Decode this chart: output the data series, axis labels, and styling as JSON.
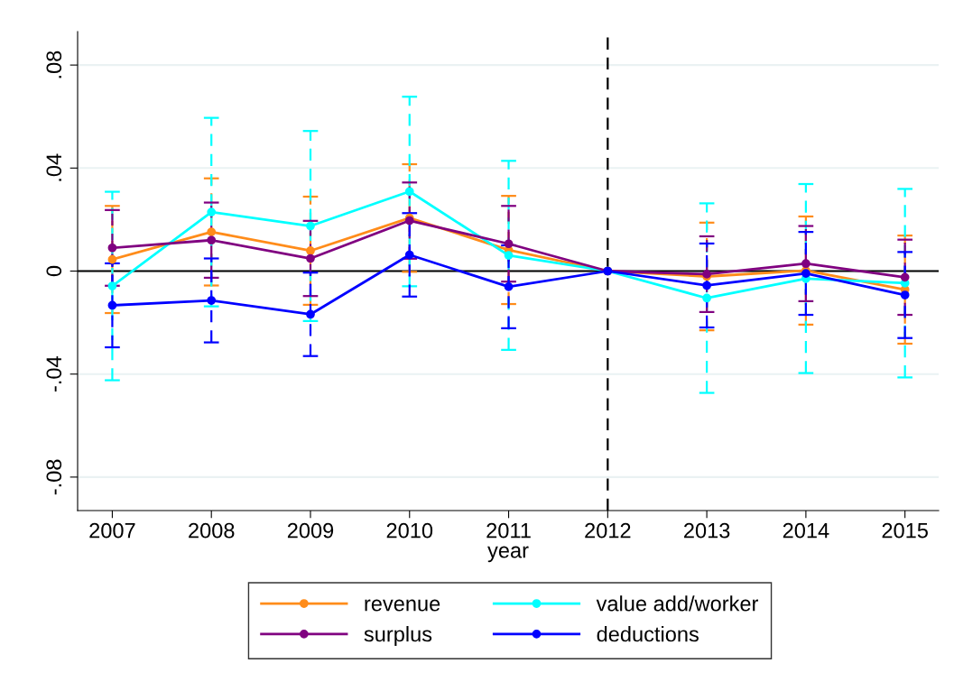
{
  "chart_data": {
    "type": "line",
    "xlabel": "year",
    "x": [
      2007,
      2008,
      2009,
      2010,
      2011,
      2012,
      2013,
      2014,
      2015
    ],
    "xlim": [
      2006.65,
      2015.34
    ],
    "xticks": [
      2007,
      2008,
      2009,
      2010,
      2011,
      2012,
      2013,
      2014,
      2015
    ],
    "ylim": [
      -0.093,
      0.093
    ],
    "yticks": [
      {
        "value": -0.08,
        "label": "-.08"
      },
      {
        "value": -0.04,
        "label": "-.04"
      },
      {
        "value": 0,
        "label": "0"
      },
      {
        "value": 0.04,
        "label": ".04"
      },
      {
        "value": 0.08,
        "label": ".08"
      }
    ],
    "grid": "y",
    "legend": "bottom",
    "marker": "circle",
    "line_style": "solid",
    "ref_lines": [
      {
        "axis": "y",
        "value": 0,
        "color": "#000000",
        "line_style": "solid"
      },
      {
        "axis": "x",
        "value": 2012,
        "color": "#000000",
        "line_style": "dashed"
      }
    ],
    "series": [
      {
        "name": "revenue",
        "color": "#ff8c1a",
        "values": [
          0.0045,
          0.0152,
          0.0079,
          0.0206,
          0.0082,
          0,
          -0.0021,
          0.0002,
          -0.0072
        ],
        "errors": [
          0.0208,
          0.0208,
          0.021,
          0.0209,
          0.021,
          null,
          0.0209,
          0.021,
          0.021
        ]
      },
      {
        "name": "value add/worker",
        "color": "#00ffff",
        "values": [
          -0.0058,
          0.0229,
          0.0175,
          0.0309,
          0.0061,
          0,
          -0.0105,
          -0.0029,
          -0.0047
        ],
        "errors": [
          0.0366,
          0.0366,
          0.0369,
          0.0368,
          0.0367,
          null,
          0.0368,
          0.0367,
          0.0366
        ]
      },
      {
        "name": "surplus",
        "color": "#800080",
        "values": [
          0.009,
          0.012,
          0.0049,
          0.0196,
          0.0106,
          0,
          -0.0012,
          0.0029,
          -0.0024
        ],
        "errors": [
          0.0147,
          0.0146,
          0.0146,
          0.0148,
          0.0147,
          null,
          0.0147,
          0.0146,
          0.0146
        ]
      },
      {
        "name": "deductions",
        "color": "#0000ff",
        "values": [
          -0.0133,
          -0.0114,
          -0.0168,
          0.0063,
          -0.0061,
          0,
          -0.0056,
          -0.0009,
          -0.0093
        ],
        "errors": [
          0.0163,
          0.0163,
          0.0162,
          0.0162,
          0.0161,
          null,
          0.0163,
          0.0161,
          0.0167
        ]
      }
    ]
  }
}
